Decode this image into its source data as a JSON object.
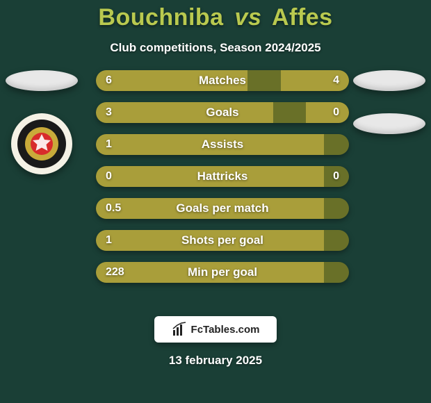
{
  "colors": {
    "background": "#1a3f36",
    "title": "#b9c94f",
    "subtitle": "#ffffff",
    "bar_track": "#697028",
    "bar_fill": "#a99e3a",
    "bar_fill_right": "#a99e3a",
    "bar_text": "#ffffff",
    "oval_left": "#e8e8e8",
    "oval_right": "#e8e8e8",
    "brand_bg": "#ffffff",
    "brand_text": "#222222",
    "date_text": "#ffffff"
  },
  "typography": {
    "title_fontsize": 34,
    "subtitle_fontsize": 17,
    "bar_label_fontsize": 17,
    "bar_value_fontsize": 16,
    "date_fontsize": 17,
    "brand_fontsize": 15
  },
  "header": {
    "player1": "Bouchniba",
    "vs": "vs",
    "player2": "Affes",
    "subtitle": "Club competitions, Season 2024/2025"
  },
  "stats": {
    "type": "comparison-bar",
    "max_ratio": 1.0,
    "rows": [
      {
        "label": "Matches",
        "left": "6",
        "right": "4",
        "left_ratio": 0.6,
        "right_ratio": 0.27
      },
      {
        "label": "Goals",
        "left": "3",
        "right": "0",
        "left_ratio": 0.7,
        "right_ratio": 0.17
      },
      {
        "label": "Assists",
        "left": "1",
        "right": "",
        "left_ratio": 0.9,
        "right_ratio": 0.0
      },
      {
        "label": "Hattricks",
        "left": "0",
        "right": "0",
        "left_ratio": 0.9,
        "right_ratio": 0.0
      },
      {
        "label": "Goals per match",
        "left": "0.5",
        "right": "",
        "left_ratio": 0.9,
        "right_ratio": 0.0
      },
      {
        "label": "Shots per goal",
        "left": "1",
        "right": "",
        "left_ratio": 0.9,
        "right_ratio": 0.0
      },
      {
        "label": "Min per goal",
        "left": "228",
        "right": "",
        "left_ratio": 0.9,
        "right_ratio": 0.0
      }
    ]
  },
  "badge": {
    "outer": "#f5f2e6",
    "ring": "#1a1a1a",
    "mid": "#c9aa3a",
    "inner": "#d82b2b"
  },
  "brand": {
    "text": "FcTables.com"
  },
  "footer": {
    "date": "13 february 2025"
  }
}
